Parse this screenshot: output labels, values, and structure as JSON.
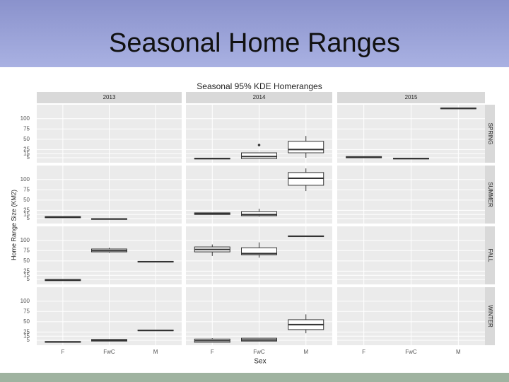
{
  "slide_title": "Seasonal Home Ranges",
  "chart_data": {
    "type": "box",
    "title": "Seasonal 95% KDE Homeranges",
    "x_label": "Sex",
    "y_label": "Home Range Size (KM2)",
    "columns": [
      "2013",
      "2014",
      "2015"
    ],
    "categories": [
      "F",
      "FwC",
      "M"
    ],
    "ylim": [
      -7,
      134
    ],
    "yticks": [
      5,
      15,
      25,
      50,
      75,
      100
    ],
    "grid": true,
    "box_color": "#ffffff",
    "line_color": "#333333",
    "rows": [
      {
        "name": "SPRING",
        "panels": [
          [
            null,
            null,
            null
          ],
          [
            {
              "low": 2,
              "q1": 2,
              "median": 3,
              "q3": 4,
              "high": 4,
              "outliers": []
            },
            {
              "low": 3,
              "q1": 3,
              "median": 8,
              "q3": 17,
              "high": 17,
              "outliers": [
                36
              ]
            },
            {
              "low": 5,
              "q1": 17,
              "median": 25,
              "q3": 45,
              "high": 58,
              "outliers": []
            }
          ],
          [
            {
              "low": 5,
              "q1": 5,
              "median": 6,
              "q3": 8,
              "high": 8,
              "outliers": []
            },
            {
              "low": 2,
              "q1": 2,
              "median": 3,
              "q3": 4,
              "high": 4,
              "outliers": []
            },
            {
              "low": 124,
              "q1": 124,
              "median": 125,
              "q3": 126,
              "high": 126,
              "outliers": []
            }
          ]
        ]
      },
      {
        "name": "SUMMER",
        "panels": [
          [
            {
              "low": 7,
              "q1": 7,
              "median": 9,
              "q3": 10,
              "high": 10,
              "outliers": []
            },
            {
              "low": 3,
              "q1": 3,
              "median": 4,
              "q3": 5,
              "high": 5,
              "outliers": []
            },
            null
          ],
          [
            {
              "low": 15,
              "q1": 15,
              "median": 17,
              "q3": 19,
              "high": 19,
              "outliers": []
            },
            {
              "low": 10,
              "q1": 12,
              "median": 15,
              "q3": 22,
              "high": 29,
              "outliers": []
            },
            {
              "low": 72,
              "q1": 86,
              "median": 103,
              "q3": 117,
              "high": 127,
              "outliers": []
            }
          ],
          [
            null,
            null,
            null
          ]
        ]
      },
      {
        "name": "FALL",
        "panels": [
          [
            {
              "low": 2,
              "q1": 2,
              "median": 4,
              "q3": 5,
              "high": 5,
              "outliers": []
            },
            {
              "low": 70,
              "q1": 72,
              "median": 75,
              "q3": 79,
              "high": 82,
              "outliers": []
            },
            {
              "low": 48,
              "q1": 48,
              "median": 48,
              "q3": 49,
              "high": 49,
              "outliers": []
            }
          ],
          [
            {
              "low": 62,
              "q1": 72,
              "median": 78,
              "q3": 84,
              "high": 90,
              "outliers": []
            },
            {
              "low": 58,
              "q1": 65,
              "median": 68,
              "q3": 82,
              "high": 95,
              "outliers": []
            },
            {
              "low": 109,
              "q1": 109,
              "median": 110,
              "q3": 111,
              "high": 111,
              "outliers": []
            }
          ],
          [
            null,
            null,
            null
          ]
        ]
      },
      {
        "name": "WINTER",
        "panels": [
          [
            {
              "low": 0,
              "q1": 0,
              "median": 1,
              "q3": 2,
              "high": 2,
              "outliers": []
            },
            {
              "low": 3,
              "q1": 3,
              "median": 5,
              "q3": 7,
              "high": 7,
              "outliers": []
            },
            {
              "low": 28,
              "q1": 28,
              "median": 29,
              "q3": 30,
              "high": 30,
              "outliers": []
            }
          ],
          [
            {
              "low": 0,
              "q1": 0,
              "median": 4,
              "q3": 8,
              "high": 10,
              "outliers": []
            },
            {
              "low": 3,
              "q1": 3,
              "median": 6,
              "q3": 10,
              "high": 10,
              "outliers": []
            },
            {
              "low": 22,
              "q1": 31,
              "median": 43,
              "q3": 55,
              "high": 68,
              "outliers": []
            }
          ],
          [
            null,
            null,
            null
          ]
        ]
      }
    ]
  }
}
